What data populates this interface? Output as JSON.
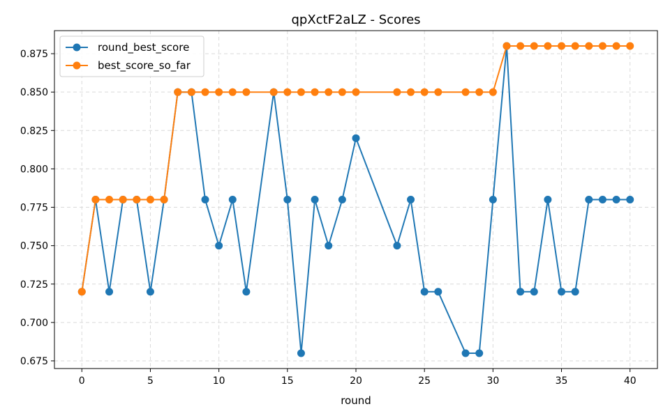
{
  "chart_data": {
    "type": "line",
    "title": "qpXctF2aLZ - Scores",
    "xlabel": "round",
    "ylabel": "",
    "xlim": [
      -2,
      42
    ],
    "ylim": [
      0.67,
      0.89
    ],
    "xticks": [
      0,
      5,
      10,
      15,
      20,
      25,
      30,
      35,
      40
    ],
    "yticks": [
      0.675,
      0.7,
      0.725,
      0.75,
      0.775,
      0.8,
      0.825,
      0.85,
      0.875
    ],
    "xtick_labels": [
      "0",
      "5",
      "10",
      "15",
      "20",
      "25",
      "30",
      "35",
      "40"
    ],
    "ytick_labels": [
      "0.675",
      "0.700",
      "0.725",
      "0.750",
      "0.775",
      "0.800",
      "0.825",
      "0.850",
      "0.875"
    ],
    "grid": true,
    "legend_position": "top-left",
    "x": [
      0,
      1,
      2,
      3,
      4,
      5,
      6,
      7,
      8,
      9,
      10,
      11,
      12,
      14,
      15,
      16,
      17,
      18,
      19,
      20,
      23,
      24,
      25,
      26,
      28,
      29,
      30,
      31,
      32,
      33,
      34,
      35,
      36,
      37,
      38,
      39,
      40
    ],
    "series": [
      {
        "name": "round_best_score",
        "color": "#1f77b4",
        "values": [
          0.72,
          0.78,
          0.72,
          0.78,
          0.78,
          0.72,
          0.78,
          0.85,
          0.85,
          0.78,
          0.75,
          0.78,
          0.72,
          0.85,
          0.78,
          0.68,
          0.78,
          0.75,
          0.78,
          0.82,
          0.75,
          0.78,
          0.72,
          0.72,
          0.68,
          0.68,
          0.78,
          0.88,
          0.72,
          0.72,
          0.78,
          0.72,
          0.72,
          0.78,
          0.78,
          0.78,
          0.78
        ]
      },
      {
        "name": "best_score_so_far",
        "color": "#ff7f0e",
        "values": [
          0.72,
          0.78,
          0.78,
          0.78,
          0.78,
          0.78,
          0.78,
          0.85,
          0.85,
          0.85,
          0.85,
          0.85,
          0.85,
          0.85,
          0.85,
          0.85,
          0.85,
          0.85,
          0.85,
          0.85,
          0.85,
          0.85,
          0.85,
          0.85,
          0.85,
          0.85,
          0.85,
          0.88,
          0.88,
          0.88,
          0.88,
          0.88,
          0.88,
          0.88,
          0.88,
          0.88,
          0.88
        ]
      }
    ]
  }
}
